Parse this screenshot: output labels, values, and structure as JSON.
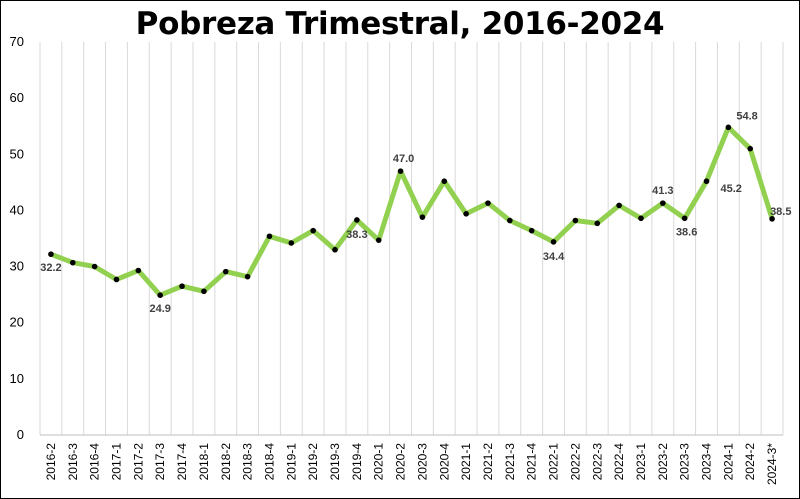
{
  "chart_data": {
    "type": "line",
    "title": "Pobreza Trimestral, 2016-2024",
    "xlabel": "",
    "ylabel": "",
    "ylim": [
      0,
      70
    ],
    "yticks": [
      0,
      10,
      20,
      30,
      40,
      50,
      60,
      70
    ],
    "grid": "vertical",
    "legend": "none",
    "colors": {
      "line": "#92d050",
      "marker": "#000000",
      "grid": "#d9d9d9",
      "axis": "#bfbfbf"
    },
    "categories": [
      "2016-2",
      "2016-3",
      "2016-4",
      "2017-1",
      "2017-2",
      "2017-3",
      "2017-4",
      "2018-1",
      "2018-2",
      "2018-3",
      "2018-4",
      "2019-1",
      "2019-2",
      "2019-3",
      "2019-4",
      "2020-1",
      "2020-2",
      "2020-3",
      "2020-4",
      "2021-1",
      "2021-2",
      "2021-3",
      "2021-4",
      "2022-1",
      "2022-2",
      "2022-3",
      "2022-4",
      "2023-1",
      "2023-2",
      "2023-3",
      "2023-4",
      "2024-1",
      "2024-2",
      "2024-3*"
    ],
    "series": [
      {
        "values": [
          32.2,
          30.7,
          30.0,
          27.7,
          29.3,
          24.9,
          26.5,
          25.6,
          29.1,
          28.2,
          35.4,
          34.2,
          36.4,
          33.0,
          38.3,
          34.7,
          47.0,
          38.8,
          45.2,
          39.4,
          41.3,
          38.2,
          36.4,
          34.4,
          38.2,
          37.7,
          40.9,
          38.6,
          41.3,
          38.6,
          45.2,
          54.8,
          51.0,
          38.5
        ]
      }
    ],
    "data_labels": [
      {
        "index": 0,
        "text": "32.2"
      },
      {
        "index": 5,
        "text": "24.9"
      },
      {
        "index": 14,
        "text": "38.3"
      },
      {
        "index": 16,
        "text": "47.0"
      },
      {
        "index": 23,
        "text": "34.4"
      },
      {
        "index": 28,
        "text": "41.3"
      },
      {
        "index": 29,
        "text": "38.6"
      },
      {
        "index": 30,
        "text": "45.2"
      },
      {
        "index": 31,
        "text": "54.8"
      },
      {
        "index": 33,
        "text": "38.5"
      }
    ]
  }
}
